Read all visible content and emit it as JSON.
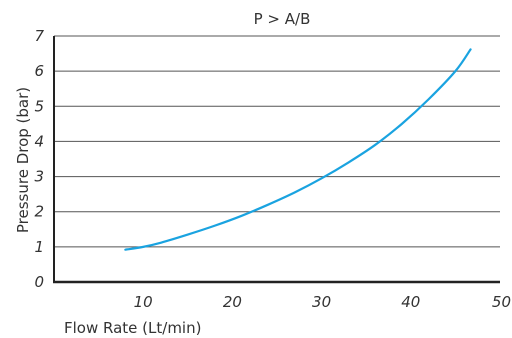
{
  "chart_data": {
    "type": "line",
    "title": "P > A/B",
    "xlabel": "Flow Rate (Lt/min)",
    "ylabel": "Pressure Drop (bar)",
    "xlim": [
      0,
      50
    ],
    "ylim": [
      0,
      7
    ],
    "x_ticks": [
      "10",
      "20",
      "30",
      "40",
      "50"
    ],
    "x_tick_values": [
      10,
      20,
      30,
      40,
      50
    ],
    "y_ticks": [
      "0",
      "1",
      "2",
      "3",
      "4",
      "5",
      "6",
      "7"
    ],
    "y_tick_values": [
      0,
      1,
      2,
      3,
      4,
      5,
      6,
      7
    ],
    "grid": "horizontal",
    "series": [
      {
        "color": "#1aa3e0",
        "x": [
          8,
          10,
          12,
          15,
          18,
          21,
          24,
          27,
          30,
          33,
          36,
          39,
          42,
          45,
          46.7
        ],
        "y": [
          0.92,
          1.0,
          1.12,
          1.35,
          1.6,
          1.88,
          2.2,
          2.55,
          2.95,
          3.4,
          3.9,
          4.5,
          5.2,
          6.0,
          6.62
        ]
      }
    ]
  }
}
